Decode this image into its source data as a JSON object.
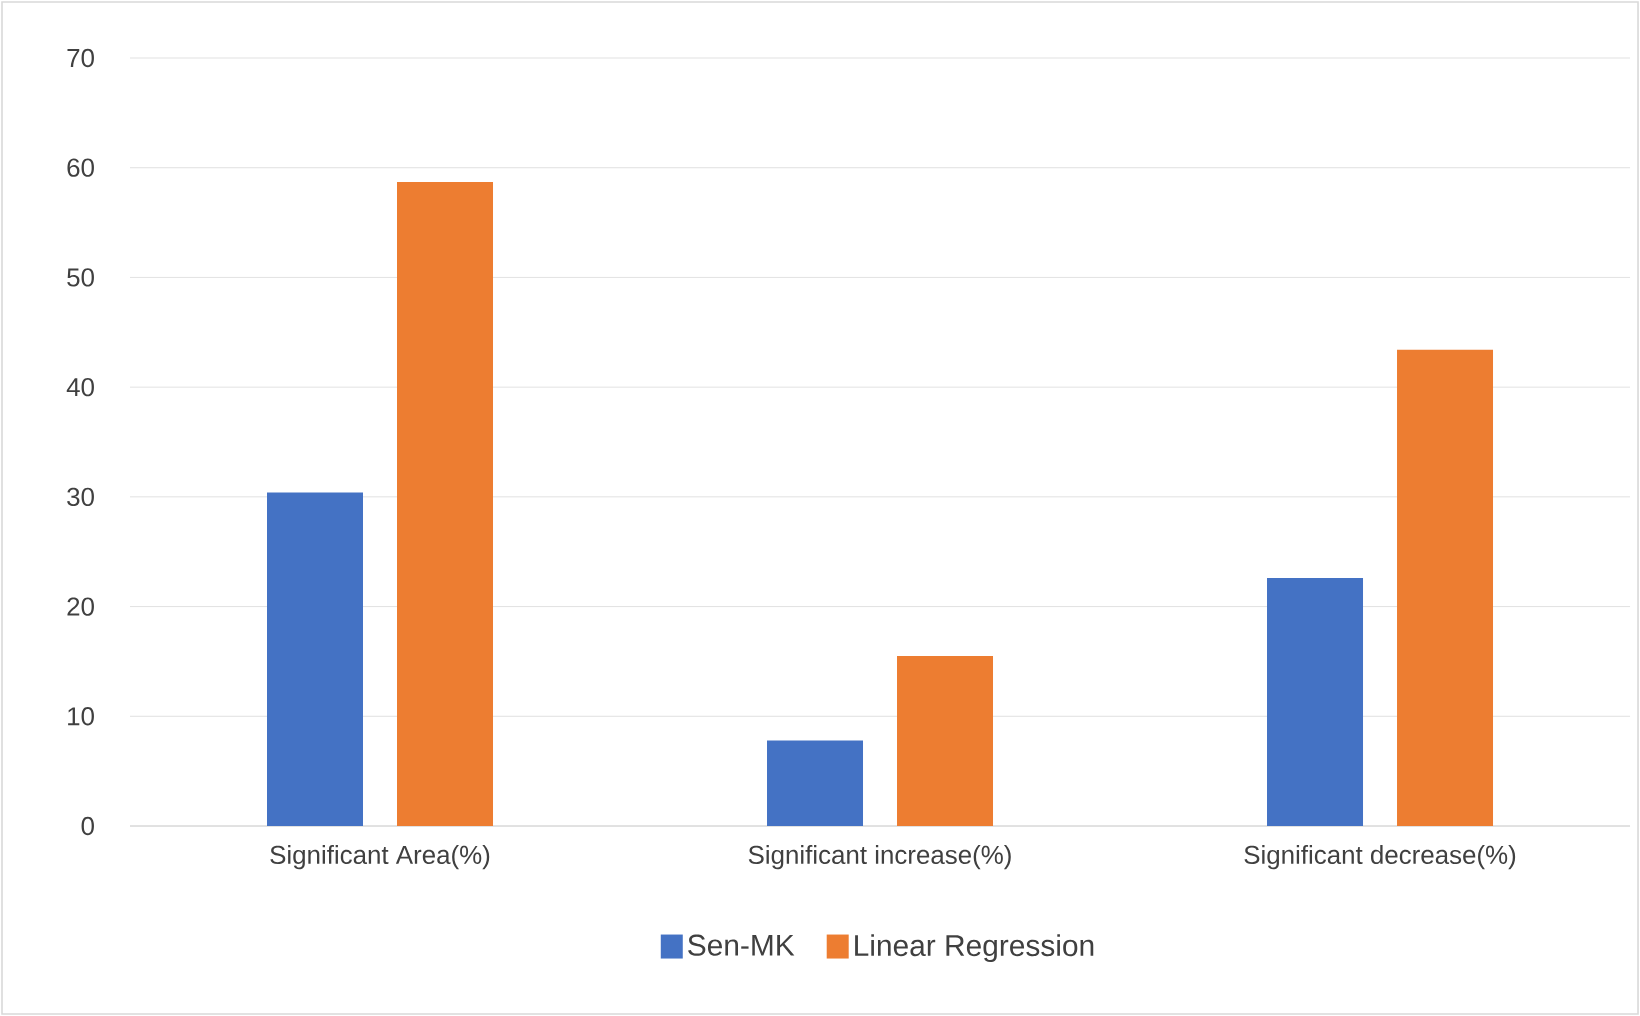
{
  "chart_data": {
    "type": "bar",
    "categories": [
      "Significant Area(%)",
      "Significant increase(%)",
      "Significant decrease(%)"
    ],
    "series": [
      {
        "name": "Sen-MK",
        "color": "#4472c4",
        "values": [
          30.4,
          7.8,
          22.6
        ]
      },
      {
        "name": "Linear Regression",
        "color": "#ed7d31",
        "values": [
          58.7,
          15.5,
          43.4
        ]
      }
    ],
    "ylim": [
      0,
      70
    ],
    "yticks": [
      0,
      10,
      20,
      30,
      40,
      50,
      60,
      70
    ],
    "grid": "y",
    "legend": "bottom"
  }
}
